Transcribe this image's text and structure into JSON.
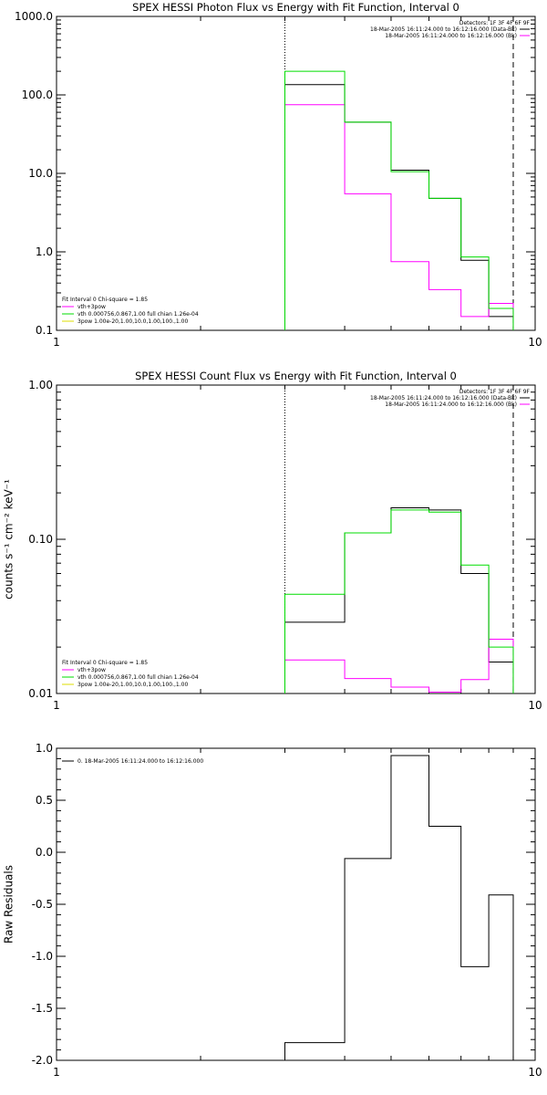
{
  "chart_data": [
    {
      "type": "line",
      "title": "SPEX HESSI Photon Flux vs Energy with Fit Function, Interval 0",
      "xlabel": "",
      "ylabel": "",
      "xscale": "log",
      "yscale": "log",
      "xlim": [
        1,
        10
      ],
      "ylim": [
        0.1,
        1000
      ],
      "xticks": [
        {
          "v": 1,
          "label": "1"
        },
        {
          "v": 10,
          "label": "10"
        }
      ],
      "yticks": [
        {
          "v": 0.1,
          "label": "0.1"
        },
        {
          "v": 1,
          "label": "1.0"
        },
        {
          "v": 10,
          "label": "10.0"
        },
        {
          "v": 100,
          "label": "100.0"
        },
        {
          "v": 1000,
          "label": "1000.0"
        }
      ],
      "vlines": [
        {
          "x": 3,
          "style": "dotted"
        },
        {
          "x": 9,
          "style": "dashed"
        }
      ],
      "series": [
        {
          "name": "",
          "color": "#000000",
          "bins": [
            [
              3,
              4,
              135
            ],
            [
              4,
              5,
              45
            ],
            [
              5,
              6,
              11
            ],
            [
              6,
              7,
              4.8
            ],
            [
              7,
              8,
              0.78
            ],
            [
              8,
              9,
              0.15
            ]
          ]
        },
        {
          "name": "vth+3pow",
          "color": "#ff00ff",
          "bins": [
            [
              3,
              4,
              75
            ],
            [
              4,
              5,
              5.5
            ],
            [
              5,
              6,
              0.75
            ],
            [
              6,
              7,
              0.33
            ],
            [
              7,
              8,
              0.15
            ],
            [
              8,
              9,
              0.22
            ]
          ]
        },
        {
          "name": "vth 0.000756,0.867,1.00 full chian 1.26e-04",
          "color": "#00dd00",
          "bins": [
            [
              3,
              4,
              200
            ],
            [
              4,
              5,
              45
            ],
            [
              5,
              6,
              10.5
            ],
            [
              6,
              7,
              4.8
            ],
            [
              7,
              8,
              0.86
            ],
            [
              8,
              9,
              0.19
            ]
          ]
        }
      ],
      "legend_left": [
        {
          "text": "Fit Interval 0   Chi-square = 1.85",
          "color": ""
        },
        {
          "text": "vth+3pow",
          "color": "#ff00ff"
        },
        {
          "text": "vth 0.000756,0.867,1.00  full chian 1.26e-04",
          "color": "#00dd00"
        },
        {
          "text": "3pow 1.00e-20,1.00,10.0,1.00,100.,1.00",
          "color": "#dddd00"
        }
      ],
      "legend_right": [
        {
          "text": "Detectors: 1F 3F 4F 6F 9F",
          "color": ""
        },
        {
          "text": "18-Mar-2005 16:11:24.000 to 16:12:16.000 (Data-Bk)",
          "color": "#000000"
        },
        {
          "text": "18-Mar-2005 16:11:24.000 to 16:12:16.000 (Bk)",
          "color": "#ff00ff"
        }
      ]
    },
    {
      "type": "line",
      "title": "SPEX HESSI Count Flux vs Energy with Fit Function, Interval 0",
      "xlabel": "",
      "ylabel": "counts s⁻¹ cm⁻² keV⁻¹",
      "xscale": "log",
      "yscale": "log",
      "xlim": [
        1,
        10
      ],
      "ylim": [
        0.01,
        1
      ],
      "xticks": [
        {
          "v": 1,
          "label": "1"
        },
        {
          "v": 10,
          "label": "10"
        }
      ],
      "yticks": [
        {
          "v": 0.01,
          "label": "0.01"
        },
        {
          "v": 0.1,
          "label": "0.10"
        },
        {
          "v": 1,
          "label": "1.00"
        }
      ],
      "vlines": [
        {
          "x": 3,
          "style": "dotted"
        },
        {
          "x": 9,
          "style": "dashed"
        }
      ],
      "series": [
        {
          "name": "",
          "color": "#000000",
          "bins": [
            [
              3,
              4,
              0.029
            ],
            [
              4,
              5,
              0.11
            ],
            [
              5,
              6,
              0.16
            ],
            [
              6,
              7,
              0.155
            ],
            [
              7,
              8,
              0.06
            ],
            [
              8,
              9,
              0.016
            ]
          ]
        },
        {
          "name": "vth+3pow",
          "color": "#ff00ff",
          "bins": [
            [
              3,
              4,
              0.0165
            ],
            [
              4,
              5,
              0.0125
            ],
            [
              5,
              6,
              0.011
            ],
            [
              6,
              7,
              0.0102
            ],
            [
              7,
              8,
              0.0123
            ],
            [
              8,
              9,
              0.0225
            ]
          ]
        },
        {
          "name": "vth 0.000756,0.867,1.00 full chian 1.26e-04",
          "color": "#00dd00",
          "bins": [
            [
              3,
              4,
              0.044
            ],
            [
              4,
              5,
              0.11
            ],
            [
              5,
              6,
              0.155
            ],
            [
              6,
              7,
              0.15
            ],
            [
              7,
              8,
              0.068
            ],
            [
              8,
              9,
              0.02
            ]
          ]
        }
      ],
      "legend_left": [
        {
          "text": "Fit Interval 0   Chi-square = 1.85",
          "color": ""
        },
        {
          "text": "vth+3pow",
          "color": "#ff00ff"
        },
        {
          "text": "vth 0.000756,0.867,1.00  full chian 1.26e-04",
          "color": "#00dd00"
        },
        {
          "text": "3pow 1.00e-20,1.00,10.0,1.00,100.,1.00",
          "color": "#dddd00"
        }
      ],
      "legend_right": [
        {
          "text": "Detectors: 1F 3F 4F 6F 9F",
          "color": ""
        },
        {
          "text": "18-Mar-2005 16:11:24.000 to 16:12:16.000 (Data-Bk)",
          "color": "#000000"
        },
        {
          "text": "18-Mar-2005 16:11:24.000 to 16:12:16.000 (Bk)",
          "color": "#ff00ff"
        }
      ]
    },
    {
      "type": "line",
      "title": "",
      "xlabel": "",
      "ylabel": "Raw Residuals",
      "xscale": "log",
      "yscale": "linear",
      "xlim": [
        1,
        10
      ],
      "ylim": [
        -2.0,
        1.0
      ],
      "xticks": [
        {
          "v": 1,
          "label": "1"
        },
        {
          "v": 10,
          "label": "10"
        }
      ],
      "yticks": [
        {
          "v": -2.0,
          "label": "-2.0"
        },
        {
          "v": -1.5,
          "label": "-1.5"
        },
        {
          "v": -1.0,
          "label": "-1.0"
        },
        {
          "v": -0.5,
          "label": "-0.5"
        },
        {
          "v": 0.0,
          "label": "0.0"
        },
        {
          "v": 0.5,
          "label": "0.5"
        },
        {
          "v": 1.0,
          "label": "1.0"
        }
      ],
      "vlines": [],
      "series": [
        {
          "name": "0. 18-Mar-2005 16:11:24.000 to 16:12:16.000",
          "color": "#000000",
          "bins": [
            [
              3,
              4,
              -1.83
            ],
            [
              4,
              5,
              -0.06
            ],
            [
              5,
              6,
              0.93
            ],
            [
              6,
              7,
              0.25
            ],
            [
              7,
              8,
              -1.1
            ],
            [
              8,
              9,
              -0.41
            ]
          ]
        }
      ],
      "legend_left": [
        {
          "text": "0. 18-Mar-2005 16:11:24.000 to 16:12:16.000",
          "color": "#000000"
        }
      ],
      "legend_right": []
    }
  ]
}
